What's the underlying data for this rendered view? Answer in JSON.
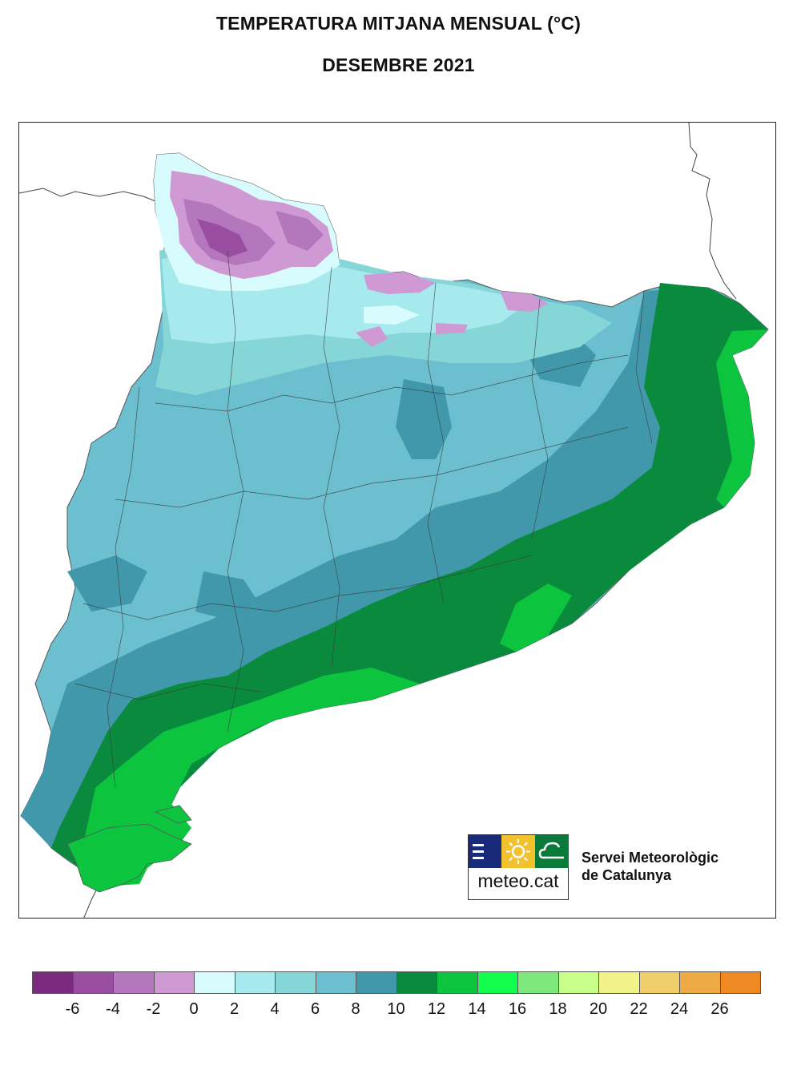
{
  "title": "TEMPERATURA MITJANA MENSUAL (°C)",
  "subtitle": "DESEMBRE 2021",
  "logo": {
    "text": "meteo.cat",
    "icons": [
      "bars-icon",
      "sun-icon",
      "cloud-icon"
    ]
  },
  "organization": {
    "line1": "Servei Meteorològic",
    "line2": "de Catalunya"
  },
  "legend": {
    "colors": [
      "#7c2a80",
      "#9a4ea0",
      "#b476bd",
      "#cf9ad3",
      "#d8fbfd",
      "#a6eaee",
      "#86d6d8",
      "#6bbfcf",
      "#4198aa",
      "#0a8a3c",
      "#0cc43e",
      "#12ff50",
      "#7ee87d",
      "#c8ff8a",
      "#f2f28a",
      "#f0cf6a",
      "#eeaa44",
      "#ef8a22"
    ],
    "ticks": [
      "-6",
      "-4",
      "-2",
      "0",
      "2",
      "4",
      "6",
      "8",
      "10",
      "12",
      "14",
      "16",
      "18",
      "20",
      "22",
      "24",
      "26"
    ]
  }
}
